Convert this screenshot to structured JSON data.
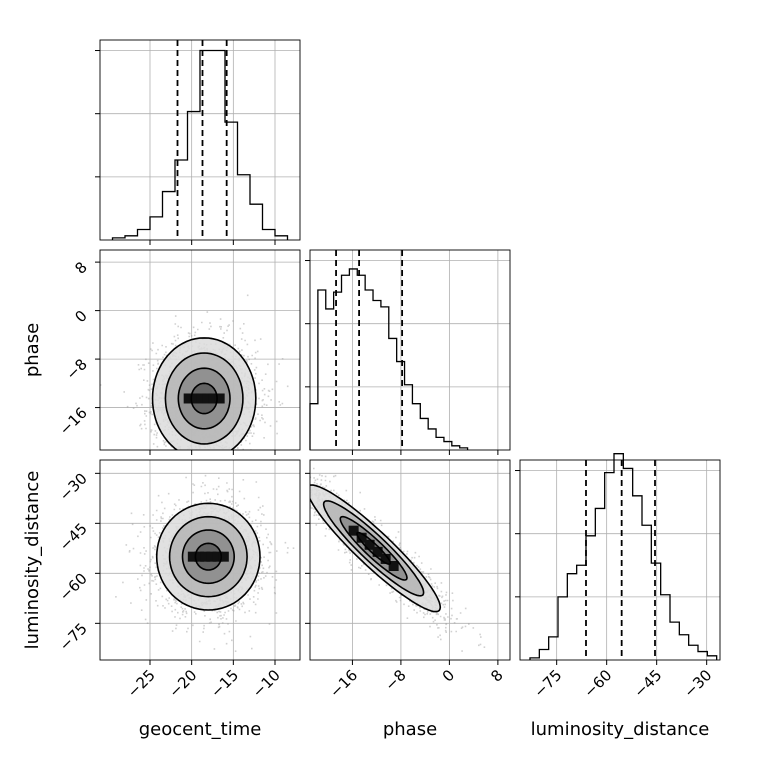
{
  "chart_data": {
    "type": "corner",
    "parameters": [
      {
        "key": "geocent_time",
        "label": "geocent_time",
        "range": [
          -31,
          -7
        ],
        "ticks": [
          -25,
          -20,
          -15,
          -10
        ],
        "quantiles": [
          -21.7,
          -18.7,
          -15.8
        ]
      },
      {
        "key": "phase",
        "label": "phase",
        "range": [
          -23,
          10
        ],
        "ticks": [
          -16,
          -8,
          0,
          8
        ],
        "quantiles": [
          -18.7,
          -14.9,
          -7.8
        ]
      },
      {
        "key": "luminosity_distance",
        "label": "luminosity_distance",
        "range": [
          -86,
          -26
        ],
        "ticks": [
          -75,
          -60,
          -45,
          -30
        ],
        "quantiles": [
          -66.2,
          -55.5,
          -45.5
        ]
      }
    ],
    "histograms": [
      {
        "param": "geocent_time",
        "bin_edges": [
          -29.5,
          -28.0,
          -26.5,
          -25.0,
          -23.5,
          -22.0,
          -20.5,
          -19.0,
          -17.5,
          -16.0,
          -14.5,
          -13.0,
          -11.5,
          -10.0,
          -8.5
        ],
        "counts": [
          0.01,
          0.02,
          0.05,
          0.11,
          0.23,
          0.38,
          0.61,
          0.9,
          0.9,
          0.56,
          0.31,
          0.17,
          0.05,
          0.02
        ]
      },
      {
        "param": "phase",
        "bin_edges": [
          -23.0,
          -21.7,
          -20.4,
          -19.1,
          -17.8,
          -16.5,
          -15.2,
          -13.9,
          -12.6,
          -11.3,
          -10.0,
          -8.7,
          -7.4,
          -6.1,
          -4.8,
          -3.5,
          -2.2,
          -0.9,
          0.4,
          1.7,
          3.0
        ],
        "counts": [
          0.22,
          0.76,
          0.67,
          0.75,
          0.83,
          0.86,
          0.83,
          0.76,
          0.71,
          0.68,
          0.53,
          0.42,
          0.31,
          0.22,
          0.15,
          0.1,
          0.06,
          0.04,
          0.02,
          0.01
        ]
      },
      {
        "param": "luminosity_distance",
        "bin_edges": [
          -83.0,
          -80.2,
          -77.4,
          -74.6,
          -71.8,
          -69.0,
          -66.2,
          -63.4,
          -60.6,
          -57.8,
          -55.0,
          -52.2,
          -49.4,
          -46.6,
          -43.8,
          -41.0,
          -38.2,
          -35.4,
          -32.6,
          -29.8,
          -27.0
        ],
        "counts": [
          0.01,
          0.05,
          0.11,
          0.3,
          0.41,
          0.45,
          0.59,
          0.72,
          0.89,
          0.98,
          0.91,
          0.78,
          0.64,
          0.46,
          0.31,
          0.18,
          0.12,
          0.07,
          0.04,
          0.02
        ]
      }
    ],
    "pairs": [
      {
        "x": "geocent_time",
        "y": "phase",
        "center": [
          -18.5,
          -14.5
        ],
        "sigma": [
          3.1,
          5.0
        ],
        "rho": 0.0
      },
      {
        "x": "geocent_time",
        "y": "luminosity_distance",
        "center": [
          -18.0,
          -55.0
        ],
        "sigma": [
          3.1,
          8.0
        ],
        "rho": 0.0
      },
      {
        "x": "phase",
        "y": "luminosity_distance",
        "center": [
          -12.5,
          -52.5
        ],
        "sigma": [
          5.5,
          9.5
        ],
        "rho": -0.93
      }
    ],
    "contour_levels": [
      0.5,
      1.0,
      1.5,
      2.0
    ],
    "grid": true
  }
}
